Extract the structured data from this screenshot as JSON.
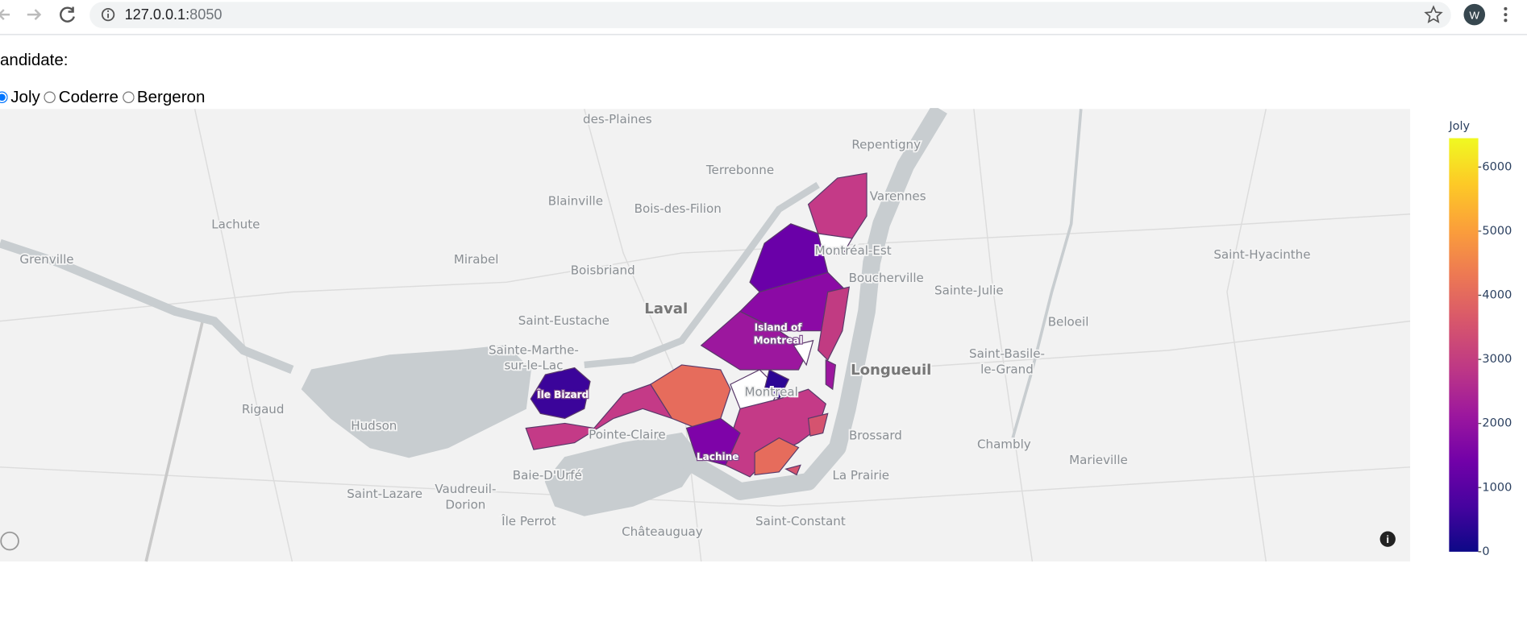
{
  "browser": {
    "url_host": "127.0.0.1:",
    "url_port": "8050",
    "profile_initial": "W"
  },
  "form": {
    "label": "andidate:",
    "options": [
      "Joly",
      "Coderre",
      "Bergeron"
    ],
    "selected": "Joly"
  },
  "map": {
    "places": [
      "des-Plaines",
      "Repentigny",
      "Terrebonne",
      "Varennes",
      "Blainville",
      "Bois-des-Filion",
      "Lachute",
      "Montréal-Est",
      "Grenville",
      "Mirabel",
      "Saint-Hyacinthe",
      "Boisbriand",
      "Boucherville",
      "Sainte-Julie",
      "Saint-Eustache",
      "Beloeil",
      "Rigaud",
      "Hudson",
      "Pointe-Claire",
      "Brossard",
      "Chambly",
      "Marieville",
      "Baie-D'Urfé",
      "La Prairie",
      "Saint-Lazare",
      "Île Perrot",
      "Saint-Constant",
      "Châteauguay"
    ],
    "major_places": [
      "Laval",
      "Longueuil"
    ],
    "multiline_places": [
      [
        "Sainte-Marthe-",
        "sur-le-Lac"
      ],
      [
        "Saint-Basile-",
        "le-Grand"
      ],
      [
        "Vaudreuil-",
        "Dorion"
      ]
    ],
    "city": "Montreal",
    "island_labels": [
      [
        "Island of",
        "Montreal"
      ],
      [
        "Île Bizard"
      ],
      [
        "Lachine"
      ]
    ]
  },
  "colorbar": {
    "title": "Joly",
    "range": [
      0,
      6450
    ],
    "ticks": [
      0,
      1000,
      2000,
      3000,
      4000,
      5000,
      6000
    ]
  }
}
